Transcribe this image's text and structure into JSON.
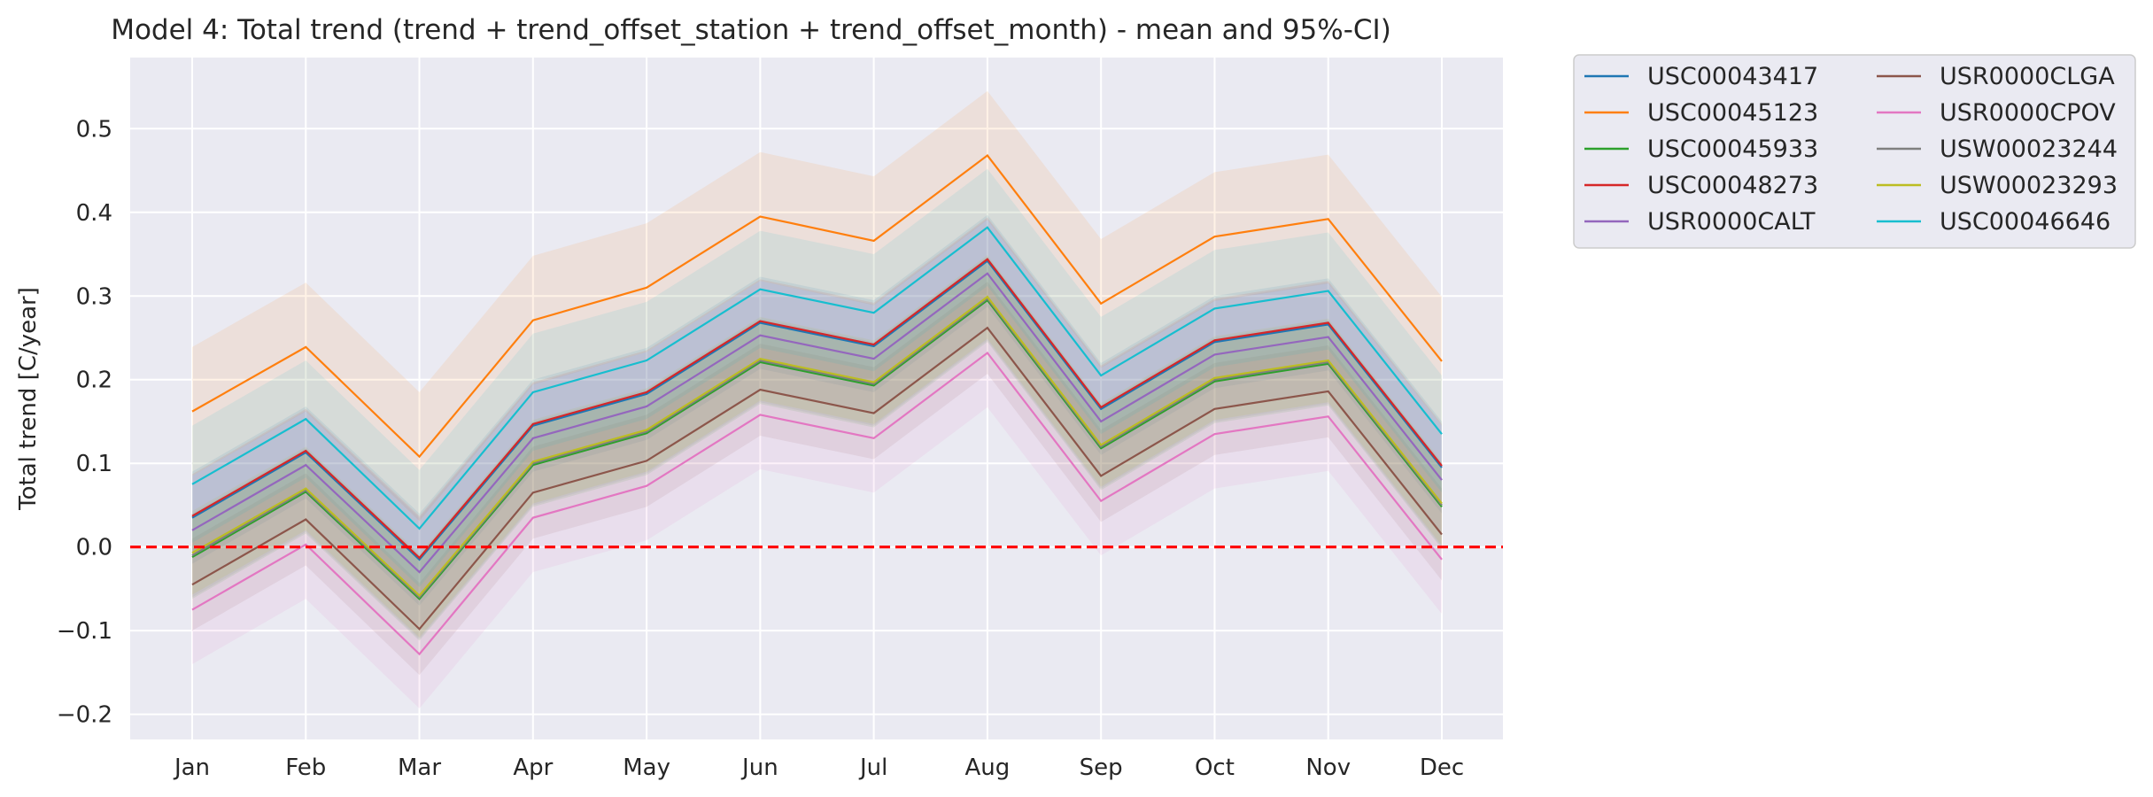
{
  "chart_data": {
    "type": "line",
    "title": "Model 4: Total trend (trend + trend_offset_station + trend_offset_month) - mean and 95%-CI)",
    "xlabel": "",
    "ylabel": "Total trend [C/year]",
    "categories": [
      "Jan",
      "Feb",
      "Mar",
      "Apr",
      "May",
      "Jun",
      "Jul",
      "Aug",
      "Sep",
      "Oct",
      "Nov",
      "Dec"
    ],
    "ylim": [
      -0.23,
      0.585
    ],
    "yticks": [
      -0.2,
      -0.1,
      0.0,
      0.1,
      0.2,
      0.3,
      0.4,
      0.5
    ],
    "ytick_labels": [
      "−0.2",
      "−0.1",
      "0.0",
      "0.1",
      "0.2",
      "0.3",
      "0.4",
      "0.5"
    ],
    "grid": true,
    "background": "#eaeaf2",
    "reference_line": {
      "y": 0.0,
      "color": "#ff0000",
      "style": "dashed"
    },
    "legend": {
      "placement": "outside-top-right",
      "columns": 2
    },
    "series": [
      {
        "name": "USC00043417",
        "color": "#1f77b4",
        "values": [
          0.035,
          0.113,
          -0.015,
          0.145,
          0.183,
          0.268,
          0.24,
          0.342,
          0.165,
          0.245,
          0.266,
          0.095
        ],
        "ci_half": 0.055
      },
      {
        "name": "USC00045123",
        "color": "#ff7f0e",
        "values": [
          0.162,
          0.239,
          0.108,
          0.271,
          0.31,
          0.395,
          0.366,
          0.468,
          0.291,
          0.371,
          0.392,
          0.222
        ],
        "ci_half": 0.077
      },
      {
        "name": "USC00045933",
        "color": "#2ca02c",
        "values": [
          -0.012,
          0.066,
          -0.062,
          0.098,
          0.136,
          0.221,
          0.193,
          0.295,
          0.118,
          0.198,
          0.219,
          0.048
        ],
        "ci_half": 0.05
      },
      {
        "name": "USC00048273",
        "color": "#d62728",
        "values": [
          0.037,
          0.115,
          -0.013,
          0.147,
          0.185,
          0.27,
          0.242,
          0.344,
          0.167,
          0.247,
          0.268,
          0.097
        ],
        "ci_half": 0.05
      },
      {
        "name": "USR0000CALT",
        "color": "#9467bd",
        "values": [
          0.02,
          0.098,
          -0.03,
          0.13,
          0.168,
          0.253,
          0.225,
          0.327,
          0.15,
          0.23,
          0.251,
          0.08
        ],
        "ci_half": 0.065
      },
      {
        "name": "USR0000CLGA",
        "color": "#8c564b",
        "values": [
          -0.045,
          0.033,
          -0.098,
          0.065,
          0.103,
          0.188,
          0.16,
          0.262,
          0.085,
          0.165,
          0.186,
          0.015
        ],
        "ci_half": 0.055
      },
      {
        "name": "USR0000CPOV",
        "color": "#e377c2",
        "values": [
          -0.075,
          0.003,
          -0.128,
          0.035,
          0.073,
          0.158,
          0.13,
          0.232,
          0.055,
          0.135,
          0.156,
          -0.015
        ],
        "ci_half": 0.065
      },
      {
        "name": "USW00023244",
        "color": "#7f7f7f",
        "values": [
          -0.01,
          0.068,
          -0.06,
          0.1,
          0.138,
          0.223,
          0.195,
          0.297,
          0.12,
          0.2,
          0.221,
          0.05
        ],
        "ci_half": 0.05
      },
      {
        "name": "USW00023293",
        "color": "#bcbd22",
        "values": [
          -0.007,
          0.07,
          -0.058,
          0.102,
          0.14,
          0.225,
          0.197,
          0.299,
          0.122,
          0.202,
          0.223,
          0.052
        ],
        "ci_half": 0.05
      },
      {
        "name": "USC00046646",
        "color": "#17becf",
        "values": [
          0.075,
          0.153,
          0.022,
          0.185,
          0.223,
          0.308,
          0.28,
          0.382,
          0.205,
          0.285,
          0.306,
          0.135
        ],
        "ci_half": 0.07
      }
    ]
  }
}
